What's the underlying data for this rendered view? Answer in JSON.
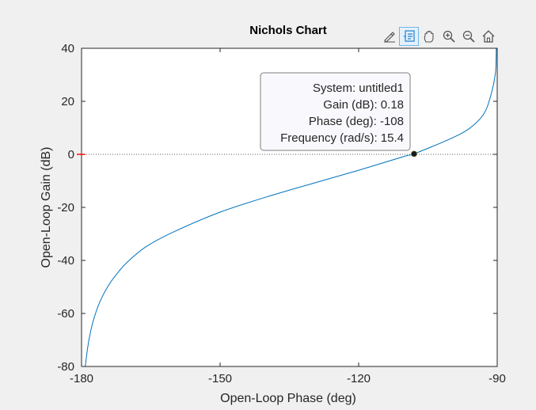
{
  "chart_data": {
    "type": "line",
    "title": "Nichols Chart",
    "xlabel": "Open-Loop Phase (deg)",
    "ylabel": "Open-Loop Gain (dB)",
    "xlim": [
      -180,
      -90
    ],
    "ylim": [
      -80,
      40
    ],
    "xticks": [
      -180,
      -150,
      -120,
      -90
    ],
    "yticks": [
      -80,
      -60,
      -40,
      -20,
      0,
      20,
      40
    ],
    "xtick_labels": [
      "-180",
      "-150",
      "-120",
      "-90"
    ],
    "ytick_labels": [
      "-80",
      "-60",
      "-40",
      "-20",
      "0",
      "20",
      "40"
    ],
    "grid": false,
    "zero_gain_line": true,
    "series": [
      {
        "color": "#0072bd",
        "x": [
          -179.2,
          -178.5,
          -177.5,
          -176,
          -174,
          -172,
          -170,
          -166,
          -160,
          -150,
          -140,
          -130,
          -120,
          -110,
          -108,
          -100,
          -96,
          -93,
          -91.5,
          -90.4,
          -90.2
        ],
        "y": [
          -80,
          -71,
          -63,
          -55.5,
          -49,
          -44.3,
          -40.5,
          -34.8,
          -29.2,
          -21.8,
          -16.1,
          -11,
          -6,
          -0.7,
          0.18,
          6,
          9.8,
          15,
          21.5,
          30.5,
          40
        ]
      }
    ],
    "datatip": {
      "x": -108,
      "y": 0.18,
      "lines": [
        {
          "label": "System:",
          "value": "untitled1"
        },
        {
          "label": "Gain (dB):",
          "value": "0.18"
        },
        {
          "label": "Phase (deg):",
          "value": "-108"
        },
        {
          "label": "Frequency (rad/s):",
          "value": "15.4"
        }
      ]
    },
    "colors": {
      "axes_text": "#262626",
      "axes_border": "#262626",
      "zero_line": "#262626",
      "zero_tick": "#ff0000",
      "tip_bg": "#f9f9fd",
      "tip_border": "#7f7f7f"
    }
  },
  "toolbar": {
    "icons": [
      "brush-icon",
      "datatip-icon",
      "pan-icon",
      "zoom-in-icon",
      "zoom-out-icon",
      "home-icon"
    ]
  }
}
